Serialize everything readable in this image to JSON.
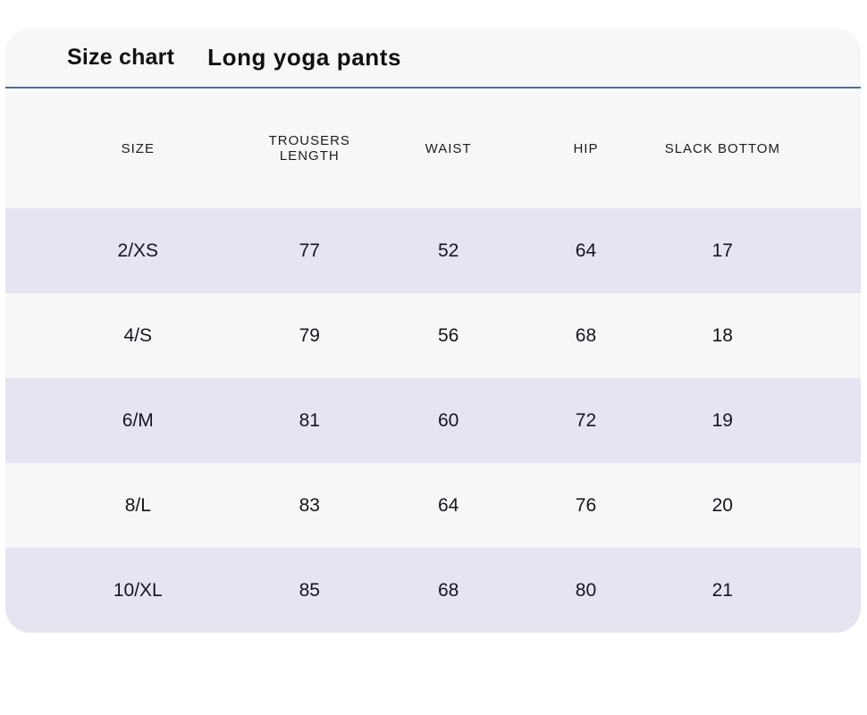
{
  "colors": {
    "page-bg": "#ffffff",
    "card-bg": "#f7f7f8",
    "divider": "#506a9e",
    "row-alt": "#e4e5f1",
    "title-text": "#111111",
    "data-text": "#15151e"
  },
  "header": {
    "title": "Size chart",
    "subtitle": "Long yoga pants"
  },
  "table": {
    "columns": [
      "SIZE",
      "TROUSERS LENGTH",
      "WAIST",
      "HIP",
      "SLACK BOTTOM"
    ],
    "rows": [
      [
        "2/XS",
        "77",
        "52",
        "64",
        "17"
      ],
      [
        "4/S",
        "79",
        "56",
        "68",
        "18"
      ],
      [
        "6/M",
        "81",
        "60",
        "72",
        "19"
      ],
      [
        "8/L",
        "83",
        "64",
        "76",
        "20"
      ],
      [
        "10/XL",
        "85",
        "68",
        "80",
        "21"
      ]
    ]
  }
}
